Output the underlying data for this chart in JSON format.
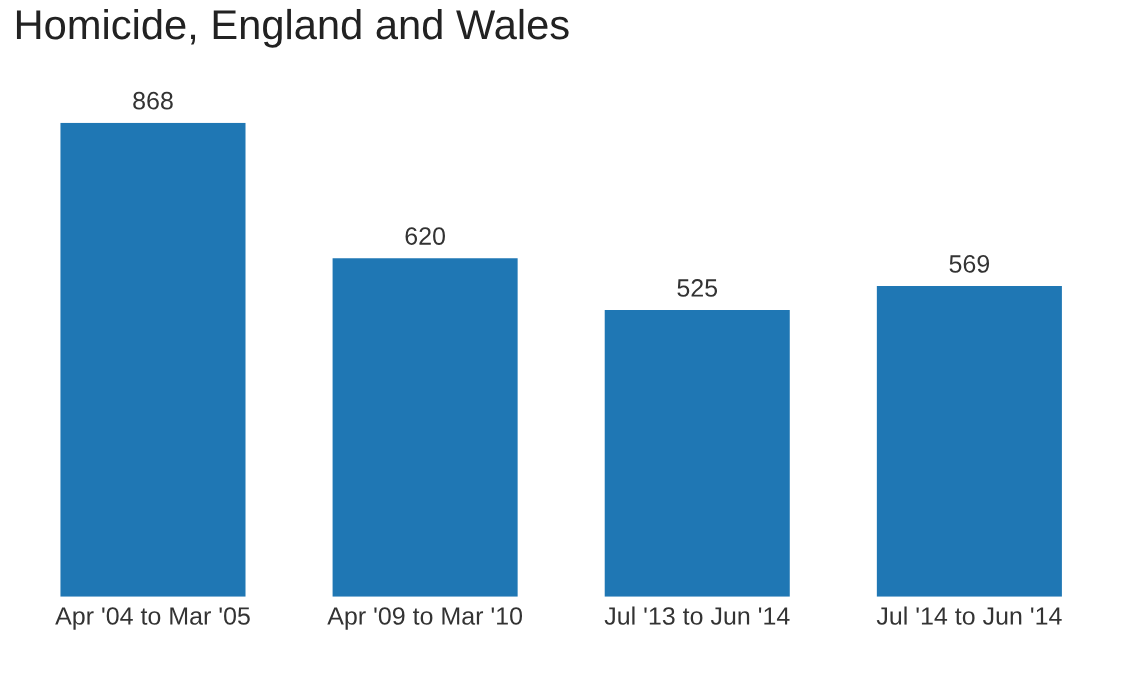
{
  "chart_data": {
    "type": "bar",
    "title": "Homicide, England and Wales",
    "categories": [
      "Apr '04 to Mar '05",
      "Apr '09 to Mar '10",
      "Jul '13 to Jun '14",
      "Jul '14 to Jun '14"
    ],
    "values": [
      868,
      620,
      525,
      569
    ],
    "color": "#1f77b4",
    "data_labels": true,
    "ylim": [
      0,
      868
    ],
    "tick_labels": "x",
    "grid": false,
    "legend": false
  }
}
